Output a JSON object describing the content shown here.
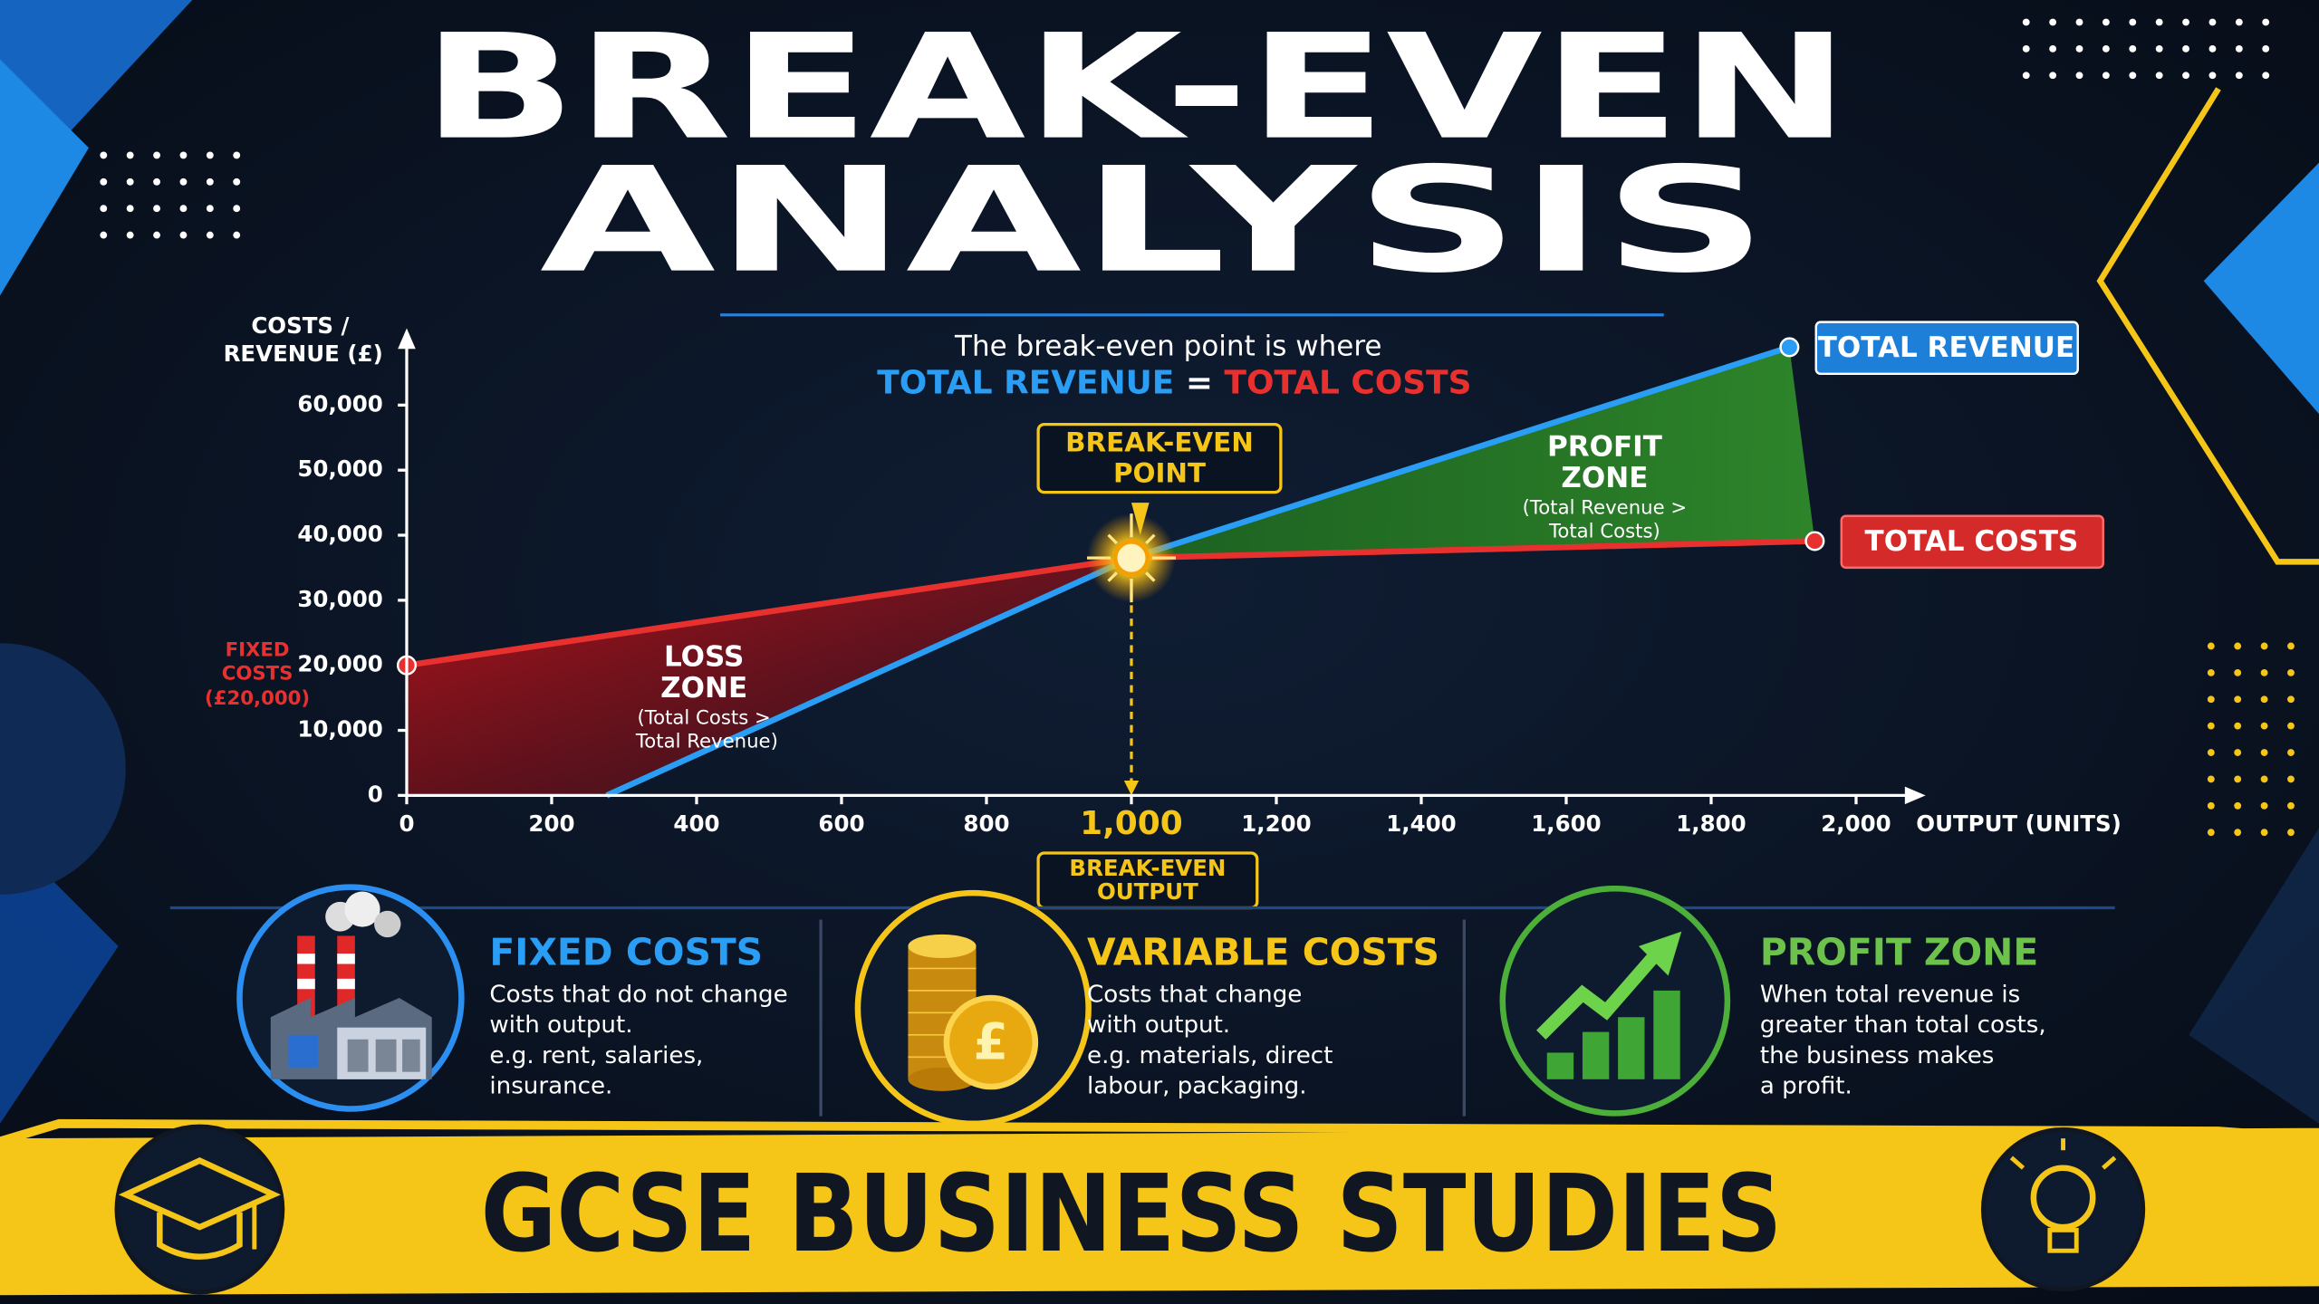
{
  "chart_data": {
    "type": "line",
    "title": [
      "BREAK-EVEN",
      "ANALYSIS"
    ],
    "subtitle": {
      "text": "The break-even point is where",
      "left": "TOTAL REVENUE",
      "equals": "=",
      "right": "TOTAL COSTS"
    },
    "ylabel": [
      "COSTS /",
      "REVENUE (£)"
    ],
    "xlabel": "OUTPUT (UNITS)",
    "xlim": [
      0,
      2100
    ],
    "ylim": [
      0,
      70000
    ],
    "xticks": [
      0,
      200,
      400,
      600,
      800,
      {
        "value": 1000,
        "label": "1,000"
      },
      {
        "value": 1200,
        "label": "1,200"
      },
      {
        "value": 1400,
        "label": "1,400"
      },
      {
        "value": 1600,
        "label": "1,600"
      },
      {
        "value": 1800,
        "label": "1,800"
      },
      {
        "value": 2000,
        "label": "2,000"
      }
    ],
    "yticks": [
      0,
      {
        "value": 10000,
        "label": "10,000"
      },
      {
        "value": 20000,
        "label": "20,000"
      },
      {
        "value": 30000,
        "label": "30,000"
      },
      {
        "value": 40000,
        "label": "40,000"
      },
      {
        "value": 50000,
        "label": "50,000"
      },
      {
        "value": 60000,
        "label": "60,000"
      }
    ],
    "series": [
      {
        "name": "TOTAL REVENUE",
        "color": "#2a9df4",
        "x": [
          276,
          1000,
          1908
        ],
        "values": [
          0,
          36500,
          68900
        ]
      },
      {
        "name": "TOTAL COSTS",
        "color": "#e8312f",
        "x": [
          0,
          1000,
          1943
        ],
        "values": [
          20000,
          36500,
          39100
        ]
      }
    ],
    "annotations": {
      "break_even_point": [
        "BREAK-EVEN",
        "POINT"
      ],
      "break_even_output": [
        "BREAK-EVEN",
        "OUTPUT"
      ],
      "fixed_costs": [
        "FIXED",
        "COSTS",
        "(£20,000)"
      ],
      "loss_zone": {
        "title": [
          "LOSS",
          "ZONE"
        ],
        "note": [
          "(Total Costs >",
          "Total Revenue)"
        ]
      },
      "profit_zone": {
        "title": [
          "PROFIT",
          "ZONE"
        ],
        "note": [
          "(Total Revenue >",
          "Total Costs)"
        ]
      }
    }
  },
  "cards": [
    {
      "title": "FIXED COSTS",
      "lines": [
        "Costs that do not change",
        "with output.",
        "e.g. rent, salaries,",
        "insurance."
      ]
    },
    {
      "title": "VARIABLE COSTS",
      "icon_text": "£",
      "lines": [
        "Costs that change",
        "with output.",
        "e.g. materials, direct",
        "labour, packaging."
      ]
    },
    {
      "title": "PROFIT ZONE",
      "lines": [
        "When total revenue is",
        "greater than total costs,",
        "the business makes",
        "a profit."
      ]
    }
  ],
  "footer": "GCSE BUSINESS STUDIES"
}
